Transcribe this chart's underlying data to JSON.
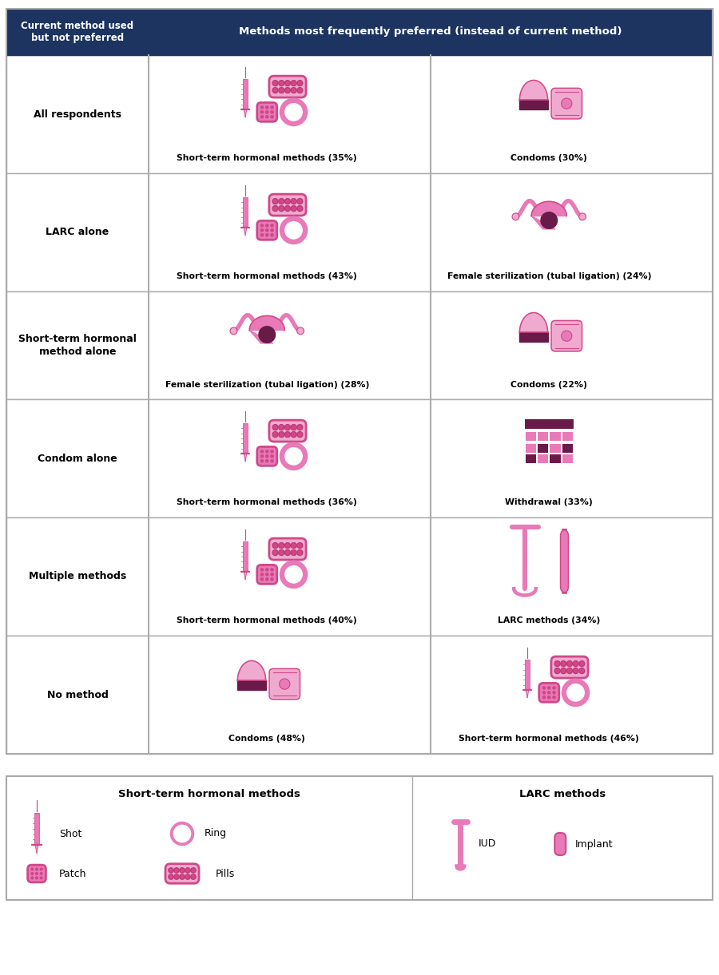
{
  "header_bg": "#1d3461",
  "header_col1": "Current method used\nbut not preferred",
  "header_col2": "Methods most frequently preferred (instead of current method)",
  "navy": "#1d3461",
  "pink1": "#e87ab8",
  "pink2": "#f0aad0",
  "pink3": "#d04888",
  "pink4": "#c03878",
  "pink5": "#f5c0dc",
  "purple": "#6a1a48",
  "withdrawal_dark": "#8a2858",
  "withdrawal_pink": "#c868a8",
  "border": "#aaaaaa",
  "rows": [
    {
      "label": "All respondents",
      "col1_method": "Short-term hormonal methods (35%)",
      "col1_type": "hormonal",
      "col2_method": "Condoms (30%)",
      "col2_type": "condom"
    },
    {
      "label": "LARC alone",
      "col1_method": "Short-term hormonal methods (43%)",
      "col1_type": "hormonal",
      "col2_method": "Female sterilization (tubal ligation) (24%)",
      "col2_type": "sterilization"
    },
    {
      "label": "Short-term hormonal\nmethod alone",
      "col1_method": "Female sterilization (tubal ligation) (28%)",
      "col1_type": "sterilization",
      "col2_method": "Condoms (22%)",
      "col2_type": "condom"
    },
    {
      "label": "Condom alone",
      "col1_method": "Short-term hormonal methods (36%)",
      "col1_type": "hormonal",
      "col2_method": "Withdrawal (33%)",
      "col2_type": "withdrawal"
    },
    {
      "label": "Multiple methods",
      "col1_method": "Short-term hormonal methods (40%)",
      "col1_type": "hormonal",
      "col2_method": "LARC methods (34%)",
      "col2_type": "larc"
    },
    {
      "label": "No method",
      "col1_method": "Condoms (48%)",
      "col1_type": "condom",
      "col2_method": "Short-term hormonal methods (46%)",
      "col2_type": "hormonal"
    }
  ],
  "legend_title_left": "Short-term hormonal methods",
  "legend_title_right": "LARC methods"
}
